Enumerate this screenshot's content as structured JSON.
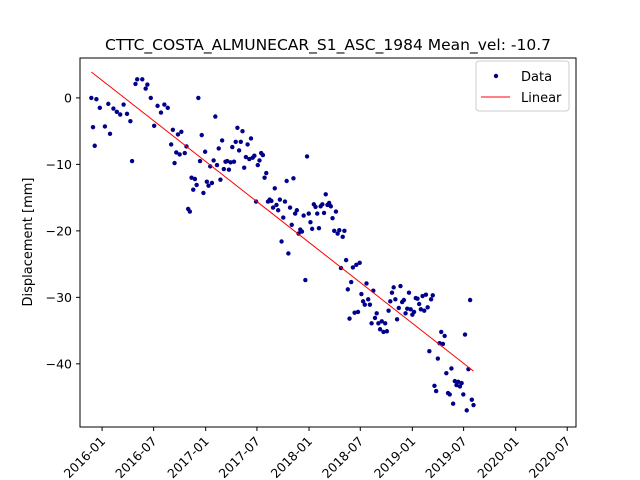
{
  "chart_data": {
    "type": "scatter",
    "title": "CTTC_COSTA_ALMUNECAR_S1_ASC_1984     Mean_vel: -10.7",
    "xlabel": "",
    "ylabel": "Displacement [mm]",
    "x_type": "date",
    "xlim": [
      "2015-10-15",
      "2020-08-01"
    ],
    "ylim": [
      -49.5,
      6
    ],
    "x_ticks": [
      "2016-01",
      "2016-07",
      "2017-01",
      "2017-07",
      "2018-01",
      "2018-07",
      "2019-01",
      "2019-07",
      "2020-01",
      "2020-07"
    ],
    "y_ticks": [
      0,
      -10,
      -20,
      -30,
      -40
    ],
    "grid": false,
    "legend": {
      "position": "top-right",
      "entries": [
        "Data",
        "Linear"
      ]
    },
    "colors": {
      "data": "#00008b",
      "linear": "#ff0000"
    },
    "series": [
      {
        "name": "Data",
        "style": "points",
        "points": [
          [
            "2015-11-24",
            0.0
          ],
          [
            "2015-11-30",
            -4.4
          ],
          [
            "2015-12-06",
            -7.2
          ],
          [
            "2015-12-12",
            -0.2
          ],
          [
            "2015-12-24",
            -1.5
          ],
          [
            "2016-01-11",
            -4.3
          ],
          [
            "2016-01-23",
            -0.9
          ],
          [
            "2016-01-29",
            -5.4
          ],
          [
            "2016-02-10",
            -1.6
          ],
          [
            "2016-02-22",
            -2.1
          ],
          [
            "2016-03-05",
            -2.5
          ],
          [
            "2016-03-17",
            -1.0
          ],
          [
            "2016-03-29",
            -2.4
          ],
          [
            "2016-04-10",
            -3.5
          ],
          [
            "2016-04-16",
            -9.5
          ],
          [
            "2016-04-28",
            2.1
          ],
          [
            "2016-05-04",
            2.8
          ],
          [
            "2016-05-22",
            2.8
          ],
          [
            "2016-06-03",
            1.4
          ],
          [
            "2016-06-09",
            2.0
          ],
          [
            "2016-06-21",
            0.0
          ],
          [
            "2016-07-03",
            -4.2
          ],
          [
            "2016-07-15",
            -1.2
          ],
          [
            "2016-07-27",
            -2.2
          ],
          [
            "2016-08-08",
            -1.0
          ],
          [
            "2016-08-20",
            -1.5
          ],
          [
            "2016-09-01",
            -7.0
          ],
          [
            "2016-09-07",
            -4.8
          ],
          [
            "2016-09-13",
            -9.8
          ],
          [
            "2016-09-19",
            -8.2
          ],
          [
            "2016-09-25",
            -5.5
          ],
          [
            "2016-10-01",
            -8.5
          ],
          [
            "2016-10-07",
            -5.1
          ],
          [
            "2016-10-19",
            -8.3
          ],
          [
            "2016-10-25",
            -7.3
          ],
          [
            "2016-10-31",
            -16.7
          ],
          [
            "2016-11-06",
            -17.1
          ],
          [
            "2016-11-12",
            -12.0
          ],
          [
            "2016-11-18",
            -13.8
          ],
          [
            "2016-11-24",
            -12.2
          ],
          [
            "2016-11-30",
            -13.1
          ],
          [
            "2016-12-06",
            0.0
          ],
          [
            "2016-12-12",
            -9.5
          ],
          [
            "2016-12-18",
            -5.6
          ],
          [
            "2016-12-24",
            -14.3
          ],
          [
            "2016-12-30",
            -8.1
          ],
          [
            "2017-01-05",
            -12.6
          ],
          [
            "2017-01-11",
            -13.2
          ],
          [
            "2017-01-17",
            -10.3
          ],
          [
            "2017-01-23",
            -12.8
          ],
          [
            "2017-01-29",
            -9.4
          ],
          [
            "2017-02-04",
            -2.8
          ],
          [
            "2017-02-10",
            -10.1
          ],
          [
            "2017-02-16",
            -7.6
          ],
          [
            "2017-02-22",
            -12.3
          ],
          [
            "2017-02-28",
            -6.4
          ],
          [
            "2017-03-06",
            -10.7
          ],
          [
            "2017-03-12",
            -9.6
          ],
          [
            "2017-03-18",
            -9.5
          ],
          [
            "2017-03-24",
            -10.8
          ],
          [
            "2017-03-30",
            -9.7
          ],
          [
            "2017-04-05",
            -7.4
          ],
          [
            "2017-04-11",
            -9.6
          ],
          [
            "2017-04-17",
            -6.6
          ],
          [
            "2017-04-23",
            -4.5
          ],
          [
            "2017-04-29",
            -7.9
          ],
          [
            "2017-05-05",
            -6.6
          ],
          [
            "2017-05-11",
            -5.0
          ],
          [
            "2017-05-17",
            -10.5
          ],
          [
            "2017-05-23",
            -8.9
          ],
          [
            "2017-05-29",
            -7.0
          ],
          [
            "2017-06-04",
            -9.2
          ],
          [
            "2017-06-10",
            -6.1
          ],
          [
            "2017-06-16",
            -9.0
          ],
          [
            "2017-06-22",
            -8.7
          ],
          [
            "2017-06-28",
            -15.6
          ],
          [
            "2017-07-04",
            -10.1
          ],
          [
            "2017-07-10",
            -9.4
          ],
          [
            "2017-07-16",
            -8.3
          ],
          [
            "2017-07-22",
            -8.6
          ],
          [
            "2017-07-28",
            -12.0
          ],
          [
            "2017-08-03",
            -11.3
          ],
          [
            "2017-08-09",
            -15.6
          ],
          [
            "2017-08-15",
            -15.3
          ],
          [
            "2017-08-21",
            -15.5
          ],
          [
            "2017-08-27",
            -16.5
          ],
          [
            "2017-09-02",
            -13.6
          ],
          [
            "2017-09-08",
            -16.1
          ],
          [
            "2017-09-14",
            -16.9
          ],
          [
            "2017-09-20",
            -15.3
          ],
          [
            "2017-09-26",
            -21.6
          ],
          [
            "2017-10-02",
            -18.0
          ],
          [
            "2017-10-08",
            -15.6
          ],
          [
            "2017-10-14",
            -12.5
          ],
          [
            "2017-10-20",
            -23.4
          ],
          [
            "2017-10-26",
            -16.5
          ],
          [
            "2017-11-01",
            -19.1
          ],
          [
            "2017-11-07",
            -12.1
          ],
          [
            "2017-11-13",
            -17.4
          ],
          [
            "2017-11-19",
            -16.9
          ],
          [
            "2017-11-25",
            -20.4
          ],
          [
            "2017-12-01",
            -19.8
          ],
          [
            "2017-12-07",
            -20.1
          ],
          [
            "2017-12-13",
            -17.7
          ],
          [
            "2017-12-19",
            -27.4
          ],
          [
            "2017-12-25",
            -8.8
          ],
          [
            "2017-12-31",
            -17.4
          ],
          [
            "2018-01-06",
            -18.7
          ],
          [
            "2018-01-12",
            -19.7
          ],
          [
            "2018-01-18",
            -16.0
          ],
          [
            "2018-01-24",
            -16.4
          ],
          [
            "2018-01-30",
            -17.4
          ],
          [
            "2018-02-05",
            -19.6
          ],
          [
            "2018-02-11",
            -16.3
          ],
          [
            "2018-02-17",
            -16.0
          ],
          [
            "2018-02-23",
            -17.3
          ],
          [
            "2018-03-01",
            -14.5
          ],
          [
            "2018-03-07",
            -16.1
          ],
          [
            "2018-03-13",
            -15.8
          ],
          [
            "2018-03-19",
            -16.3
          ],
          [
            "2018-03-25",
            -18.1
          ],
          [
            "2018-03-31",
            -20.0
          ],
          [
            "2018-04-06",
            -17.1
          ],
          [
            "2018-04-12",
            -20.4
          ],
          [
            "2018-04-18",
            -19.9
          ],
          [
            "2018-04-24",
            -25.6
          ],
          [
            "2018-04-30",
            -20.9
          ],
          [
            "2018-05-06",
            -20.0
          ],
          [
            "2018-05-12",
            -24.4
          ],
          [
            "2018-05-18",
            -28.8
          ],
          [
            "2018-05-24",
            -33.2
          ],
          [
            "2018-05-30",
            -27.7
          ],
          [
            "2018-06-05",
            -25.5
          ],
          [
            "2018-06-11",
            -32.3
          ],
          [
            "2018-06-17",
            -25.1
          ],
          [
            "2018-06-23",
            -32.2
          ],
          [
            "2018-06-29",
            -24.8
          ],
          [
            "2018-07-05",
            -29.5
          ],
          [
            "2018-07-11",
            -30.6
          ],
          [
            "2018-07-17",
            -31.1
          ],
          [
            "2018-07-23",
            -27.9
          ],
          [
            "2018-07-29",
            -30.3
          ],
          [
            "2018-08-04",
            -31.1
          ],
          [
            "2018-08-10",
            -33.9
          ],
          [
            "2018-08-16",
            -29.0
          ],
          [
            "2018-08-22",
            -33.1
          ],
          [
            "2018-08-28",
            -32.4
          ],
          [
            "2018-09-03",
            -33.9
          ],
          [
            "2018-09-09",
            -34.8
          ],
          [
            "2018-09-15",
            -33.6
          ],
          [
            "2018-09-21",
            -35.2
          ],
          [
            "2018-09-27",
            -33.9
          ],
          [
            "2018-10-03",
            -35.1
          ],
          [
            "2018-10-09",
            -32.0
          ],
          [
            "2018-10-15",
            -30.6
          ],
          [
            "2018-10-21",
            -29.3
          ],
          [
            "2018-10-27",
            -28.5
          ],
          [
            "2018-11-02",
            -30.3
          ],
          [
            "2018-11-08",
            -33.3
          ],
          [
            "2018-11-14",
            -31.6
          ],
          [
            "2018-11-20",
            -28.3
          ],
          [
            "2018-11-26",
            -30.7
          ],
          [
            "2018-12-02",
            -30.4
          ],
          [
            "2018-12-08",
            -32.4
          ],
          [
            "2018-12-14",
            -31.7
          ],
          [
            "2018-12-20",
            -29.3
          ],
          [
            "2018-12-26",
            -31.8
          ],
          [
            "2019-01-01",
            -32.6
          ],
          [
            "2019-01-07",
            -32.2
          ],
          [
            "2019-01-13",
            -30.1
          ],
          [
            "2019-01-19",
            -30.2
          ],
          [
            "2019-01-25",
            -31.0
          ],
          [
            "2019-01-31",
            -31.8
          ],
          [
            "2019-02-06",
            -29.8
          ],
          [
            "2019-02-12",
            -32.0
          ],
          [
            "2019-02-18",
            -29.6
          ],
          [
            "2019-02-24",
            -31.5
          ],
          [
            "2019-03-02",
            -38.1
          ],
          [
            "2019-03-08",
            -30.3
          ],
          [
            "2019-03-14",
            -29.7
          ],
          [
            "2019-03-20",
            -43.3
          ],
          [
            "2019-03-26",
            -44.1
          ],
          [
            "2019-04-01",
            -39.2
          ],
          [
            "2019-04-07",
            -36.9
          ],
          [
            "2019-04-13",
            -35.2
          ],
          [
            "2019-04-19",
            -37.0
          ],
          [
            "2019-04-25",
            -35.8
          ],
          [
            "2019-05-01",
            -41.4
          ],
          [
            "2019-05-07",
            -44.4
          ],
          [
            "2019-05-13",
            -44.6
          ],
          [
            "2019-05-19",
            -40.7
          ],
          [
            "2019-05-25",
            -46.0
          ],
          [
            "2019-05-31",
            -42.6
          ],
          [
            "2019-06-06",
            -43.2
          ],
          [
            "2019-06-12",
            -42.7
          ],
          [
            "2019-06-18",
            -43.4
          ],
          [
            "2019-06-24",
            -42.9
          ],
          [
            "2019-06-30",
            -44.6
          ],
          [
            "2019-07-06",
            -35.6
          ],
          [
            "2019-07-12",
            -47.0
          ],
          [
            "2019-07-18",
            -40.8
          ],
          [
            "2019-07-24",
            -30.4
          ],
          [
            "2019-07-30",
            -45.4
          ],
          [
            "2019-08-05",
            -46.2
          ]
        ]
      },
      {
        "name": "Linear",
        "style": "line",
        "points": [
          [
            "2015-11-24",
            3.9
          ],
          [
            "2019-08-05",
            -41.1
          ]
        ]
      }
    ]
  }
}
